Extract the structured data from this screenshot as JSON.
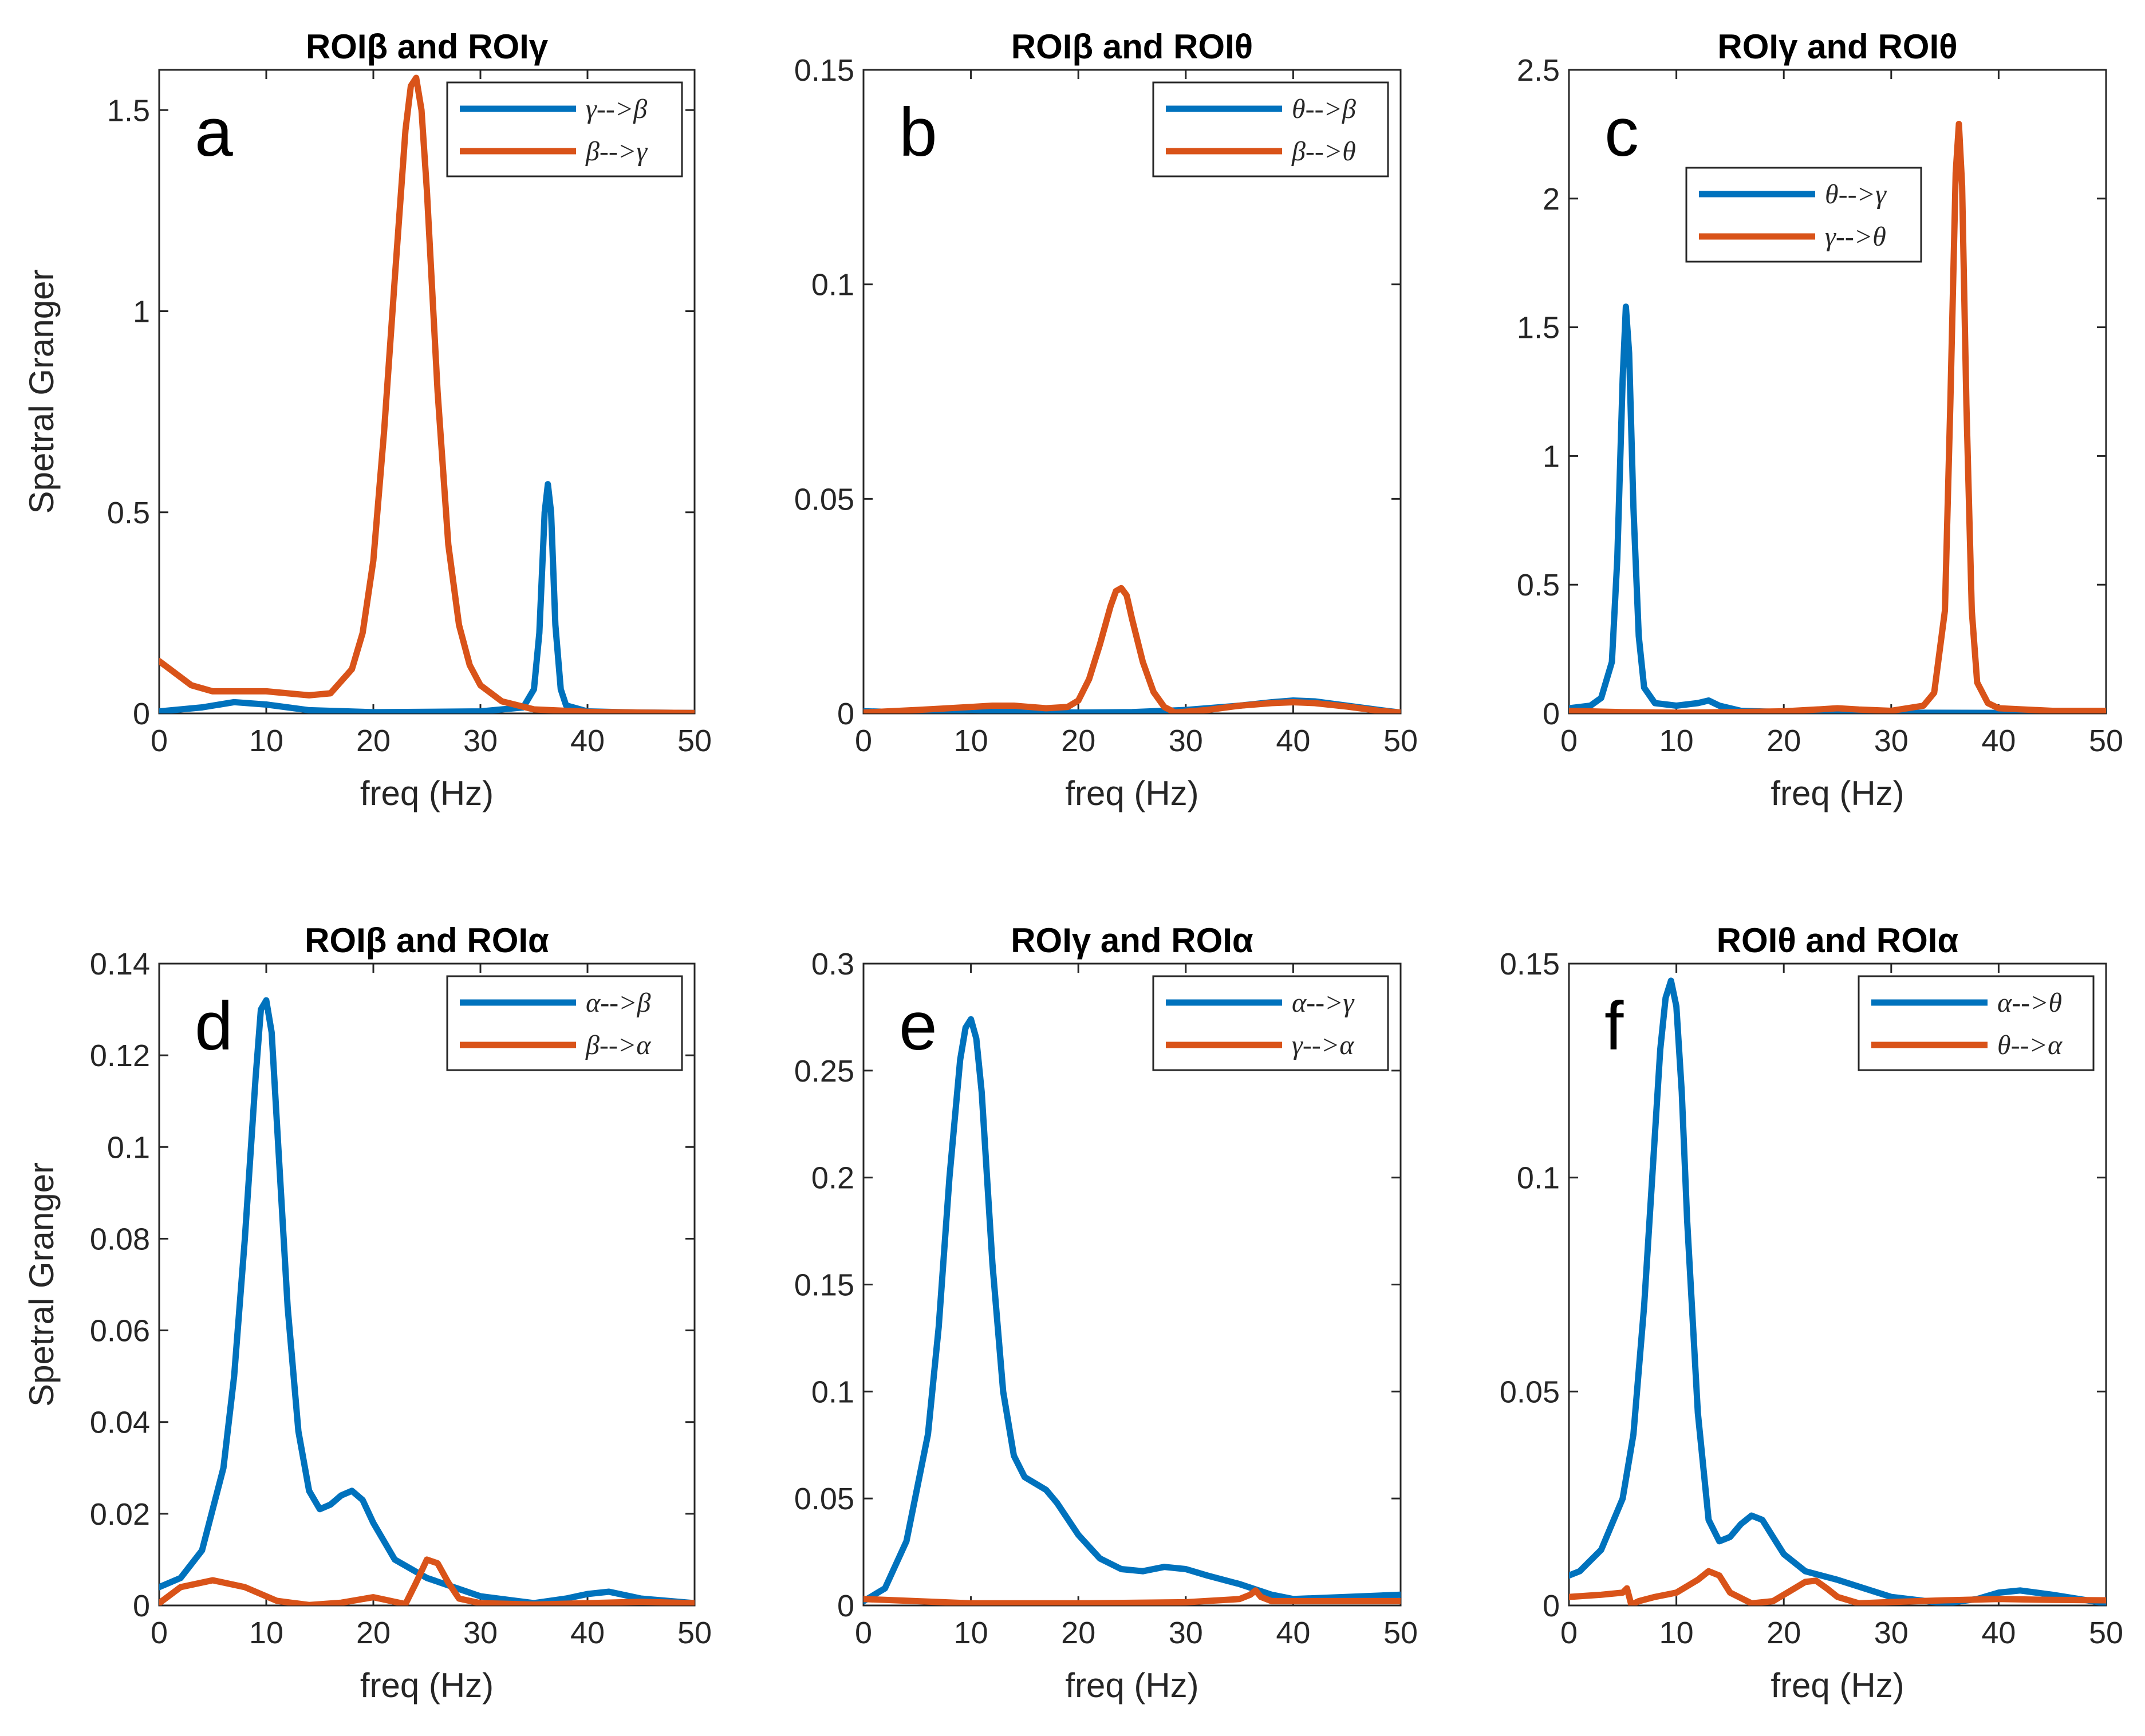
{
  "colors": {
    "series1": "#0072BD",
    "series2": "#D95319",
    "axis": "#262626"
  },
  "chart_data": [
    {
      "type": "line",
      "panel_letter": "a",
      "title": "ROIβ and ROIγ",
      "xlabel": "freq (Hz)",
      "ylabel": "Spetral Granger",
      "xlim": [
        0,
        50
      ],
      "ylim": [
        0,
        1.6
      ],
      "xticks": [
        0,
        10,
        20,
        30,
        40,
        50
      ],
      "xtick_labels": [
        "0",
        "10",
        "20",
        "30",
        "40",
        "50"
      ],
      "yticks": [
        0,
        0.5,
        1,
        1.5
      ],
      "ytick_labels": [
        "0",
        "0.5",
        "1",
        "1.5"
      ],
      "legend_position": "top-right",
      "series": [
        {
          "name": "γ-->β",
          "color": "#0072BD",
          "x": [
            0,
            4,
            7,
            10,
            14,
            20,
            30,
            34,
            35,
            35.5,
            36,
            36.3,
            36.6,
            37,
            37.5,
            38,
            40,
            45,
            50
          ],
          "y": [
            0.005,
            0.015,
            0.028,
            0.022,
            0.008,
            0.003,
            0.005,
            0.015,
            0.06,
            0.2,
            0.5,
            0.57,
            0.5,
            0.22,
            0.06,
            0.02,
            0.005,
            0.002,
            0.001
          ]
        },
        {
          "name": "β-->γ",
          "color": "#D95319",
          "x": [
            0,
            1,
            3,
            5,
            8,
            10,
            12,
            14,
            16,
            18,
            19,
            20,
            21,
            22,
            23,
            23.5,
            24,
            24.5,
            25,
            26,
            27,
            28,
            29,
            30,
            32,
            35,
            40,
            45,
            50
          ],
          "y": [
            0.13,
            0.11,
            0.07,
            0.055,
            0.055,
            0.055,
            0.05,
            0.045,
            0.05,
            0.11,
            0.2,
            0.38,
            0.7,
            1.08,
            1.45,
            1.56,
            1.58,
            1.5,
            1.3,
            0.8,
            0.42,
            0.22,
            0.12,
            0.07,
            0.03,
            0.01,
            0.004,
            0.002,
            0.001
          ]
        }
      ]
    },
    {
      "type": "line",
      "panel_letter": "b",
      "title": "ROIβ and ROIθ",
      "xlabel": "freq (Hz)",
      "ylabel": "",
      "xlim": [
        0,
        50
      ],
      "ylim": [
        0,
        0.15
      ],
      "xticks": [
        0,
        10,
        20,
        30,
        40,
        50
      ],
      "xtick_labels": [
        "0",
        "10",
        "20",
        "30",
        "40",
        "50"
      ],
      "yticks": [
        0,
        0.05,
        0.1,
        0.15
      ],
      "ytick_labels": [
        "0",
        "0.05",
        "0.1",
        "0.15"
      ],
      "legend_position": "top-right",
      "series": [
        {
          "name": "θ-->β",
          "color": "#0072BD",
          "x": [
            0,
            5,
            8,
            10,
            15,
            20,
            25,
            30,
            35,
            38,
            40,
            42,
            45,
            48,
            50
          ],
          "y": [
            0.0005,
            0.0002,
            0.0006,
            0.0008,
            0.0004,
            0.0002,
            0.0003,
            0.0008,
            0.0018,
            0.0026,
            0.003,
            0.0028,
            0.0018,
            0.0008,
            0.0002
          ]
        },
        {
          "name": "β-->θ",
          "color": "#D95319",
          "x": [
            0,
            5,
            10,
            12,
            14,
            17,
            19,
            20,
            21,
            22,
            23,
            23.5,
            24,
            24.5,
            25,
            26,
            27,
            28,
            29,
            32,
            35,
            38,
            40,
            42,
            45,
            48,
            50
          ],
          "y": [
            0.0002,
            0.0008,
            0.0015,
            0.0018,
            0.0018,
            0.0012,
            0.0015,
            0.003,
            0.008,
            0.016,
            0.025,
            0.0285,
            0.0292,
            0.0275,
            0.022,
            0.012,
            0.005,
            0.0015,
            0.0002,
            0.0008,
            0.0018,
            0.0024,
            0.0026,
            0.0024,
            0.0016,
            0.0006,
            0.0002
          ]
        }
      ]
    },
    {
      "type": "line",
      "panel_letter": "c",
      "title": "ROIγ and ROIθ",
      "xlabel": "freq (Hz)",
      "ylabel": "",
      "xlim": [
        0,
        50
      ],
      "ylim": [
        0,
        2.5
      ],
      "xticks": [
        0,
        10,
        20,
        30,
        40,
        50
      ],
      "xtick_labels": [
        "0",
        "10",
        "20",
        "30",
        "40",
        "50"
      ],
      "yticks": [
        0,
        0.5,
        1,
        1.5,
        2,
        2.5
      ],
      "ytick_labels": [
        "0",
        "0.5",
        "1",
        "1.5",
        "2",
        "2.5"
      ],
      "legend_position": "top-left",
      "series": [
        {
          "name": "θ-->γ",
          "color": "#0072BD",
          "x": [
            0,
            2,
            3,
            4,
            4.5,
            5,
            5.3,
            5.6,
            6,
            6.5,
            7,
            8,
            10,
            12,
            13,
            14,
            16,
            20,
            30,
            40,
            50
          ],
          "y": [
            0.02,
            0.03,
            0.06,
            0.2,
            0.6,
            1.3,
            1.58,
            1.4,
            0.8,
            0.3,
            0.1,
            0.04,
            0.03,
            0.04,
            0.05,
            0.03,
            0.01,
            0.005,
            0.003,
            0.002,
            0.002
          ]
        },
        {
          "name": "γ-->θ",
          "color": "#D95319",
          "x": [
            0,
            5,
            10,
            15,
            20,
            23,
            25,
            27,
            30,
            33,
            34,
            35,
            35.5,
            36,
            36.3,
            36.6,
            37,
            37.5,
            38,
            39,
            40,
            45,
            50
          ],
          "y": [
            0.01,
            0.005,
            0.003,
            0.005,
            0.008,
            0.015,
            0.02,
            0.015,
            0.01,
            0.03,
            0.08,
            0.4,
            1.2,
            2.1,
            2.29,
            2.05,
            1.2,
            0.4,
            0.12,
            0.04,
            0.02,
            0.01,
            0.01
          ]
        }
      ]
    },
    {
      "type": "line",
      "panel_letter": "d",
      "title": "ROIβ and ROIα",
      "xlabel": "freq (Hz)",
      "ylabel": "Spetral Granger",
      "xlim": [
        0,
        50
      ],
      "ylim": [
        0,
        0.14
      ],
      "xticks": [
        0,
        10,
        20,
        30,
        40,
        50
      ],
      "xtick_labels": [
        "0",
        "10",
        "20",
        "30",
        "40",
        "50"
      ],
      "yticks": [
        0,
        0.02,
        0.04,
        0.06,
        0.08,
        0.1,
        0.12,
        0.14
      ],
      "ytick_labels": [
        "0",
        "0.02",
        "0.04",
        "0.06",
        "0.08",
        "0.1",
        "0.12",
        "0.14"
      ],
      "legend_position": "top-right",
      "series": [
        {
          "name": "α-->β",
          "color": "#0072BD",
          "x": [
            0,
            2,
            4,
            6,
            7,
            8,
            9,
            9.5,
            10,
            10.5,
            11,
            12,
            13,
            14,
            15,
            16,
            17,
            18,
            19,
            20,
            22,
            25,
            30,
            35,
            38,
            40,
            42,
            45,
            50
          ],
          "y": [
            0.004,
            0.006,
            0.012,
            0.03,
            0.05,
            0.08,
            0.115,
            0.13,
            0.132,
            0.125,
            0.105,
            0.065,
            0.038,
            0.025,
            0.021,
            0.022,
            0.024,
            0.025,
            0.023,
            0.018,
            0.01,
            0.006,
            0.002,
            0.0005,
            0.0015,
            0.0025,
            0.003,
            0.0015,
            0.0005
          ]
        },
        {
          "name": "β-->α",
          "color": "#D95319",
          "x": [
            0,
            2,
            5,
            8,
            11,
            14,
            17,
            20,
            22,
            23,
            24,
            25,
            26,
            27,
            28,
            30,
            35,
            40,
            45,
            50
          ],
          "y": [
            0.0005,
            0.004,
            0.0055,
            0.004,
            0.001,
            0.0001,
            0.0006,
            0.0018,
            0.0008,
            0.0003,
            0.005,
            0.01,
            0.0092,
            0.005,
            0.0015,
            0.0005,
            0.0002,
            0.0005,
            0.0008,
            0.0005
          ]
        }
      ]
    },
    {
      "type": "line",
      "panel_letter": "e",
      "title": "ROIγ and ROIα",
      "xlabel": "freq (Hz)",
      "ylabel": "",
      "xlim": [
        0,
        50
      ],
      "ylim": [
        0,
        0.3
      ],
      "xticks": [
        0,
        10,
        20,
        30,
        40,
        50
      ],
      "xtick_labels": [
        "0",
        "10",
        "20",
        "30",
        "40",
        "50"
      ],
      "yticks": [
        0,
        0.05,
        0.1,
        0.15,
        0.2,
        0.25,
        0.3
      ],
      "ytick_labels": [
        "0",
        "0.05",
        "0.1",
        "0.15",
        "0.2",
        "0.25",
        "0.3"
      ],
      "legend_position": "top-right",
      "series": [
        {
          "name": "α-->γ",
          "color": "#0072BD",
          "x": [
            0,
            2,
            4,
            6,
            7,
            8,
            9,
            9.5,
            10,
            10.5,
            11,
            12,
            13,
            14,
            15,
            16,
            17,
            18,
            20,
            22,
            24,
            26,
            28,
            30,
            32,
            35,
            38,
            40,
            45,
            50
          ],
          "y": [
            0.002,
            0.008,
            0.03,
            0.08,
            0.13,
            0.2,
            0.255,
            0.27,
            0.274,
            0.265,
            0.24,
            0.16,
            0.1,
            0.07,
            0.06,
            0.057,
            0.054,
            0.048,
            0.033,
            0.022,
            0.017,
            0.016,
            0.018,
            0.017,
            0.014,
            0.01,
            0.005,
            0.003,
            0.004,
            0.005
          ]
        },
        {
          "name": "γ-->α",
          "color": "#D95319",
          "x": [
            0,
            5,
            10,
            15,
            20,
            30,
            35,
            36,
            36.5,
            37,
            38,
            40,
            45,
            50
          ],
          "y": [
            0.003,
            0.002,
            0.001,
            0.001,
            0.001,
            0.0015,
            0.003,
            0.005,
            0.007,
            0.004,
            0.002,
            0.002,
            0.002,
            0.002
          ]
        }
      ]
    },
    {
      "type": "line",
      "panel_letter": "f",
      "title": "ROIθ and ROIα",
      "xlabel": "freq (Hz)",
      "ylabel": "",
      "xlim": [
        0,
        50
      ],
      "ylim": [
        0,
        0.15
      ],
      "xticks": [
        0,
        10,
        20,
        30,
        40,
        50
      ],
      "xtick_labels": [
        "0",
        "10",
        "20",
        "30",
        "40",
        "50"
      ],
      "yticks": [
        0,
        0.05,
        0.1,
        0.15
      ],
      "ytick_labels": [
        "0",
        "0.05",
        "0.1",
        "0.15"
      ],
      "legend_position": "top-right",
      "series": [
        {
          "name": "α-->θ",
          "color": "#0072BD",
          "x": [
            0,
            1,
            3,
            5,
            6,
            7,
            8,
            8.5,
            9,
            9.5,
            10,
            10.5,
            11,
            12,
            13,
            14,
            15,
            16,
            17,
            18,
            19,
            20,
            22,
            25,
            30,
            35,
            38,
            40,
            42,
            45,
            50
          ],
          "y": [
            0.007,
            0.008,
            0.013,
            0.025,
            0.04,
            0.07,
            0.11,
            0.13,
            0.142,
            0.146,
            0.14,
            0.12,
            0.09,
            0.045,
            0.02,
            0.015,
            0.016,
            0.019,
            0.021,
            0.02,
            0.016,
            0.012,
            0.008,
            0.006,
            0.002,
            0.0005,
            0.0015,
            0.003,
            0.0035,
            0.0025,
            0.0005
          ]
        },
        {
          "name": "θ-->α",
          "color": "#D95319",
          "x": [
            0,
            3,
            5,
            5.4,
            5.8,
            6.5,
            8,
            10,
            12,
            13,
            14,
            15,
            17,
            19,
            21,
            22,
            23,
            24,
            25,
            27,
            30,
            35,
            40,
            45,
            50
          ],
          "y": [
            0.002,
            0.0025,
            0.003,
            0.004,
            0.0002,
            0.001,
            0.002,
            0.003,
            0.006,
            0.008,
            0.007,
            0.003,
            0.0005,
            0.001,
            0.004,
            0.0055,
            0.0058,
            0.004,
            0.002,
            0.0005,
            0.0008,
            0.0012,
            0.0015,
            0.0013,
            0.0012
          ]
        }
      ]
    }
  ]
}
